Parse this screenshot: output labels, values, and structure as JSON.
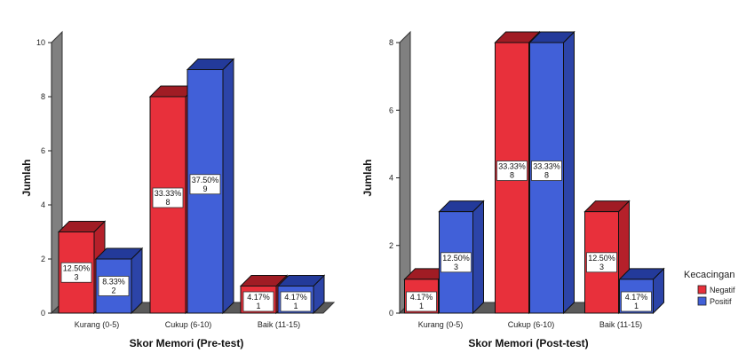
{
  "chart_data": [
    {
      "type": "bar",
      "categories": [
        "Kurang (0-5)",
        "Cukup (6-10)",
        "Baik (11-15)"
      ],
      "series": [
        {
          "name": "Negatif",
          "values": [
            3,
            8,
            1
          ],
          "labels": [
            "12.50%",
            "33.33%",
            "4.17%"
          ]
        },
        {
          "name": "Positif",
          "values": [
            2,
            9,
            1
          ],
          "labels": [
            "8.33%",
            "37.50%",
            "4.17%"
          ]
        }
      ],
      "xlabel": "Skor Memori (Pre-test)",
      "ylabel": "Jumlah",
      "ylim": [
        0,
        10
      ],
      "yticks": [
        0,
        2,
        4,
        6,
        8,
        10
      ],
      "grid": false
    },
    {
      "type": "bar",
      "categories": [
        "Kurang (0-5)",
        "Cukup (6-10)",
        "Baik (11-15)"
      ],
      "series": [
        {
          "name": "Negatif",
          "values": [
            1,
            8,
            3
          ],
          "labels": [
            "4.17%",
            "33.33%",
            "12.50%"
          ]
        },
        {
          "name": "Positif",
          "values": [
            3,
            8,
            1
          ],
          "labels": [
            "12.50%",
            "33.33%",
            "4.17%"
          ]
        }
      ],
      "xlabel": "Skor Memori (Post-test)",
      "ylabel": "Jumlah",
      "ylim": [
        0,
        8
      ],
      "yticks": [
        0,
        2,
        4,
        6,
        8
      ],
      "grid": false
    }
  ],
  "legend": {
    "title": "Kecacingan",
    "items": [
      "Negatif",
      "Positif"
    ],
    "placement": "right"
  },
  "colors": {
    "negatif_front": "#e8303b",
    "negatif_top": "#a01c24",
    "negatif_side": "#b5202a",
    "positif_front": "#4160d8",
    "positif_top": "#233a9a",
    "positif_side": "#2c44a8",
    "wall": "#808080",
    "floor": "#5a5a5a"
  }
}
